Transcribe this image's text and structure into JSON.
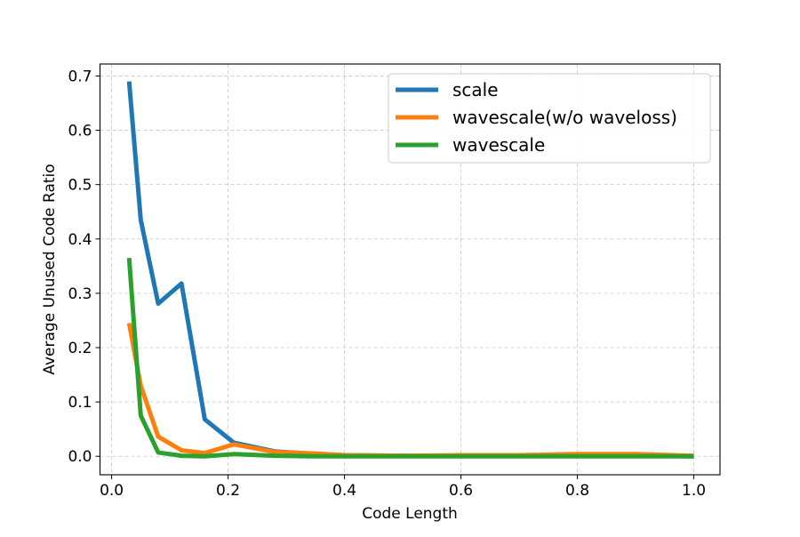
{
  "chart_data": {
    "type": "line",
    "title": "",
    "xlabel": "Code Length",
    "ylabel": "Average Unused Code Ratio",
    "xlim": [
      -0.02,
      1.045
    ],
    "ylim": [
      -0.034,
      0.722
    ],
    "xticks": [
      0.0,
      0.2,
      0.4,
      0.6,
      0.8,
      1.0
    ],
    "xtick_labels": [
      "0.0",
      "0.2",
      "0.4",
      "0.6",
      "0.8",
      "1.0"
    ],
    "yticks": [
      0.0,
      0.1,
      0.2,
      0.3,
      0.4,
      0.5,
      0.6,
      0.7
    ],
    "ytick_labels": [
      "0.0",
      "0.1",
      "0.2",
      "0.3",
      "0.4",
      "0.5",
      "0.6",
      "0.7"
    ],
    "grid": true,
    "legend_position": "top-right",
    "series": [
      {
        "name": "scale",
        "color": "#1f77b4",
        "x": [
          0.03,
          0.05,
          0.08,
          0.12,
          0.16,
          0.21,
          0.28,
          0.35,
          0.4,
          0.5,
          0.6,
          0.7,
          0.8,
          0.9,
          1.0
        ],
        "y": [
          0.69,
          0.435,
          0.281,
          0.318,
          0.068,
          0.025,
          0.009,
          0.004,
          0.002,
          0.001,
          0.001,
          0.001,
          0.001,
          0.001,
          0.0
        ]
      },
      {
        "name": "wavescale(w/o waveloss)",
        "color": "#ff7f0e",
        "x": [
          0.03,
          0.05,
          0.08,
          0.12,
          0.16,
          0.21,
          0.28,
          0.35,
          0.4,
          0.5,
          0.6,
          0.7,
          0.8,
          0.9,
          1.0
        ],
        "y": [
          0.245,
          0.13,
          0.036,
          0.011,
          0.006,
          0.022,
          0.008,
          0.005,
          0.002,
          0.001,
          0.002,
          0.002,
          0.004,
          0.004,
          0.001
        ]
      },
      {
        "name": "wavescale",
        "color": "#2ca02c",
        "x": [
          0.03,
          0.05,
          0.08,
          0.12,
          0.16,
          0.21,
          0.28,
          0.35,
          0.4,
          0.5,
          0.6,
          0.7,
          0.8,
          0.9,
          1.0
        ],
        "y": [
          0.365,
          0.075,
          0.007,
          0.001,
          0.0,
          0.004,
          0.001,
          0.0,
          0.0,
          0.0,
          0.0,
          0.0,
          0.0,
          0.0,
          0.0
        ]
      }
    ]
  }
}
